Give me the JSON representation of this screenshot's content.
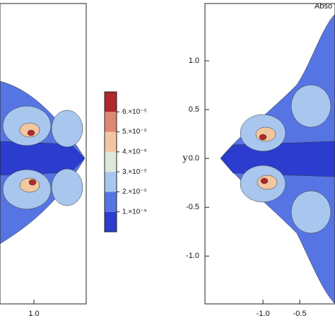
{
  "chart_data": [
    {
      "type": "contour",
      "xlim": [
        0.54,
        1.71
      ],
      "ylim": [
        -1.49,
        1.587
      ],
      "xticks": [
        {
          "value": 1.0,
          "label": "1.0"
        }
      ]
    },
    {
      "type": "contour",
      "title": "Abso",
      "y_label": "y",
      "xlim": [
        -1.79,
        -0.02
      ],
      "ylim": [
        -1.49,
        1.587
      ],
      "xticks": [
        {
          "value": -1.0,
          "label": "-1.0"
        },
        {
          "value": -0.5,
          "label": "-0.5"
        }
      ],
      "yticks": [
        {
          "value": 1.0,
          "label": "1.0"
        },
        {
          "value": 0.5,
          "label": "0.5"
        },
        {
          "value": 0.0,
          "label": "0.0"
        },
        {
          "value": -0.5,
          "label": "-0.5"
        },
        {
          "value": -1.0,
          "label": "-1.0"
        }
      ]
    }
  ],
  "colorbar": {
    "levels": [
      {
        "value": 1e-05,
        "label": "1.×10⁻⁵"
      },
      {
        "value": 2e-05,
        "label": "2.×10⁻⁵"
      },
      {
        "value": 3e-05,
        "label": "3.×10⁻⁵"
      },
      {
        "value": 4e-05,
        "label": "4.×10⁻⁵"
      },
      {
        "value": 5e-05,
        "label": "5.×10⁻⁵"
      },
      {
        "value": 6e-05,
        "label": "6.×10⁻⁵"
      }
    ],
    "colors": [
      "#2b3ccf",
      "#5675e3",
      "#a8c6ee",
      "#dfe6da",
      "#f2c7a0",
      "#de8870",
      "#b0282c"
    ]
  }
}
